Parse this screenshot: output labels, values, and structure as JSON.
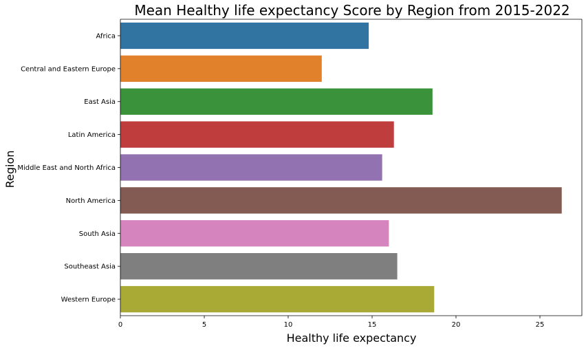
{
  "chart_data": {
    "type": "bar",
    "orientation": "horizontal",
    "title": "Mean Healthy life expectancy Score by Region from 2015-2022",
    "xlabel": "Healthy life expectancy",
    "ylabel": "Region",
    "xlim": [
      0,
      27.5
    ],
    "xticks": [
      0,
      5,
      10,
      15,
      20,
      25
    ],
    "grid": false,
    "categories": [
      "Africa",
      "Central and Eastern Europe",
      "East Asia",
      "Latin America",
      "Middle East and North Africa",
      "North America",
      "South Asia",
      "Southeast Asia",
      "Western Europe"
    ],
    "values": [
      14.8,
      12.0,
      18.6,
      16.3,
      15.6,
      26.3,
      16.0,
      16.5,
      18.7
    ],
    "colors": [
      "#3274a1",
      "#e1812c",
      "#3a923a",
      "#c03d3e",
      "#9372b2",
      "#845b53",
      "#d684bd",
      "#7f7f7f",
      "#a9aa35"
    ]
  }
}
